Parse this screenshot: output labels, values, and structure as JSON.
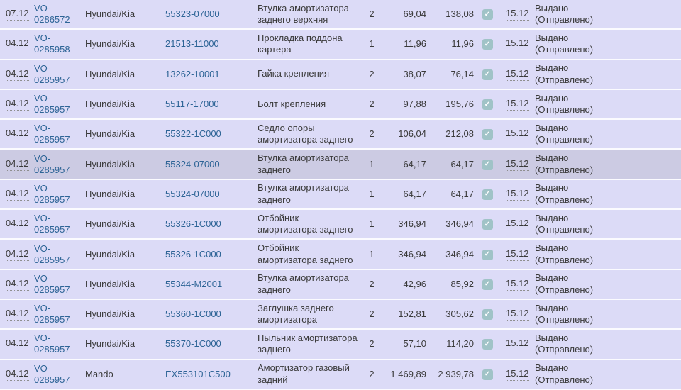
{
  "colors": {
    "row_bg": "#dcdbf7",
    "row_highlight": "#cccbe3",
    "row_separator": "#fbfbff",
    "link_blue": "#2d6496",
    "text_dark": "#3a3a3a",
    "checkbox_teal": "#a0c3c7",
    "checkmark_white": "#ffffff",
    "dotted_underline": "#8f8f8f"
  },
  "icons": {
    "checkmark": "✓"
  },
  "table": {
    "rows": [
      {
        "date": "07.12",
        "order": "VO-0286572",
        "brand": "Hyundai/Kia",
        "part": "55323-07000",
        "name": "Втулка амортизатора заднего верхняя",
        "qty": "2",
        "price": "69,04",
        "total": "138,08",
        "checked": true,
        "date2": "15.12",
        "status": "Выдано (Отправлено)",
        "highlighted": false
      },
      {
        "date": "04.12",
        "order": "VO-0285958",
        "brand": "Hyundai/Kia",
        "part": "21513-11000",
        "name": "Прокладка поддона картера",
        "qty": "1",
        "price": "11,96",
        "total": "11,96",
        "checked": true,
        "date2": "15.12",
        "status": "Выдано (Отправлено)",
        "highlighted": false
      },
      {
        "date": "04.12",
        "order": "VO-0285957",
        "brand": "Hyundai/Kia",
        "part": "13262-10001",
        "name": "Гайка крепления",
        "qty": "2",
        "price": "38,07",
        "total": "76,14",
        "checked": true,
        "date2": "15.12",
        "status": "Выдано (Отправлено)",
        "highlighted": false
      },
      {
        "date": "04.12",
        "order": "VO-0285957",
        "brand": "Hyundai/Kia",
        "part": "55117-17000",
        "name": "Болт крепления",
        "qty": "2",
        "price": "97,88",
        "total": "195,76",
        "checked": true,
        "date2": "15.12",
        "status": "Выдано (Отправлено)",
        "highlighted": false
      },
      {
        "date": "04.12",
        "order": "VO-0285957",
        "brand": "Hyundai/Kia",
        "part": "55322-1C000",
        "name": "Седло опоры амортизатора заднего",
        "qty": "2",
        "price": "106,04",
        "total": "212,08",
        "checked": true,
        "date2": "15.12",
        "status": "Выдано (Отправлено)",
        "highlighted": false
      },
      {
        "date": "04.12",
        "order": "VO-0285957",
        "brand": "Hyundai/Kia",
        "part": "55324-07000",
        "name": "Втулка амортизатора заднего",
        "qty": "1",
        "price": "64,17",
        "total": "64,17",
        "checked": true,
        "date2": "15.12",
        "status": "Выдано (Отправлено)",
        "highlighted": true
      },
      {
        "date": "04.12",
        "order": "VO-0285957",
        "brand": "Hyundai/Kia",
        "part": "55324-07000",
        "name": "Втулка амортизатора заднего",
        "qty": "1",
        "price": "64,17",
        "total": "64,17",
        "checked": true,
        "date2": "15.12",
        "status": "Выдано (Отправлено)",
        "highlighted": false
      },
      {
        "date": "04.12",
        "order": "VO-0285957",
        "brand": "Hyundai/Kia",
        "part": "55326-1C000",
        "name": "Отбойник амортизатора заднего",
        "qty": "1",
        "price": "346,94",
        "total": "346,94",
        "checked": true,
        "date2": "15.12",
        "status": "Выдано (Отправлено)",
        "highlighted": false
      },
      {
        "date": "04.12",
        "order": "VO-0285957",
        "brand": "Hyundai/Kia",
        "part": "55326-1C000",
        "name": "Отбойник амортизатора заднего",
        "qty": "1",
        "price": "346,94",
        "total": "346,94",
        "checked": true,
        "date2": "15.12",
        "status": "Выдано (Отправлено)",
        "highlighted": false
      },
      {
        "date": "04.12",
        "order": "VO-0285957",
        "brand": "Hyundai/Kia",
        "part": "55344-M2001",
        "name": "Втулка амортизатора заднего",
        "qty": "2",
        "price": "42,96",
        "total": "85,92",
        "checked": true,
        "date2": "15.12",
        "status": "Выдано (Отправлено)",
        "highlighted": false
      },
      {
        "date": "04.12",
        "order": "VO-0285957",
        "brand": "Hyundai/Kia",
        "part": "55360-1C000",
        "name": "Заглушка заднего амортизатора",
        "qty": "2",
        "price": "152,81",
        "total": "305,62",
        "checked": true,
        "date2": "15.12",
        "status": "Выдано (Отправлено)",
        "highlighted": false
      },
      {
        "date": "04.12",
        "order": "VO-0285957",
        "brand": "Hyundai/Kia",
        "part": "55370-1C000",
        "name": "Пыльник амортизатора заднего",
        "qty": "2",
        "price": "57,10",
        "total": "114,20",
        "checked": true,
        "date2": "15.12",
        "status": "Выдано (Отправлено)",
        "highlighted": false
      },
      {
        "date": "04.12",
        "order": "VO-0285957",
        "brand": "Mando",
        "part": "EX553101C500",
        "name": "Амортизатор газовый задний",
        "qty": "2",
        "price": "1 469,89",
        "total": "2 939,78",
        "checked": true,
        "date2": "15.12",
        "status": "Выдано (Отправлено)",
        "highlighted": false
      }
    ]
  }
}
